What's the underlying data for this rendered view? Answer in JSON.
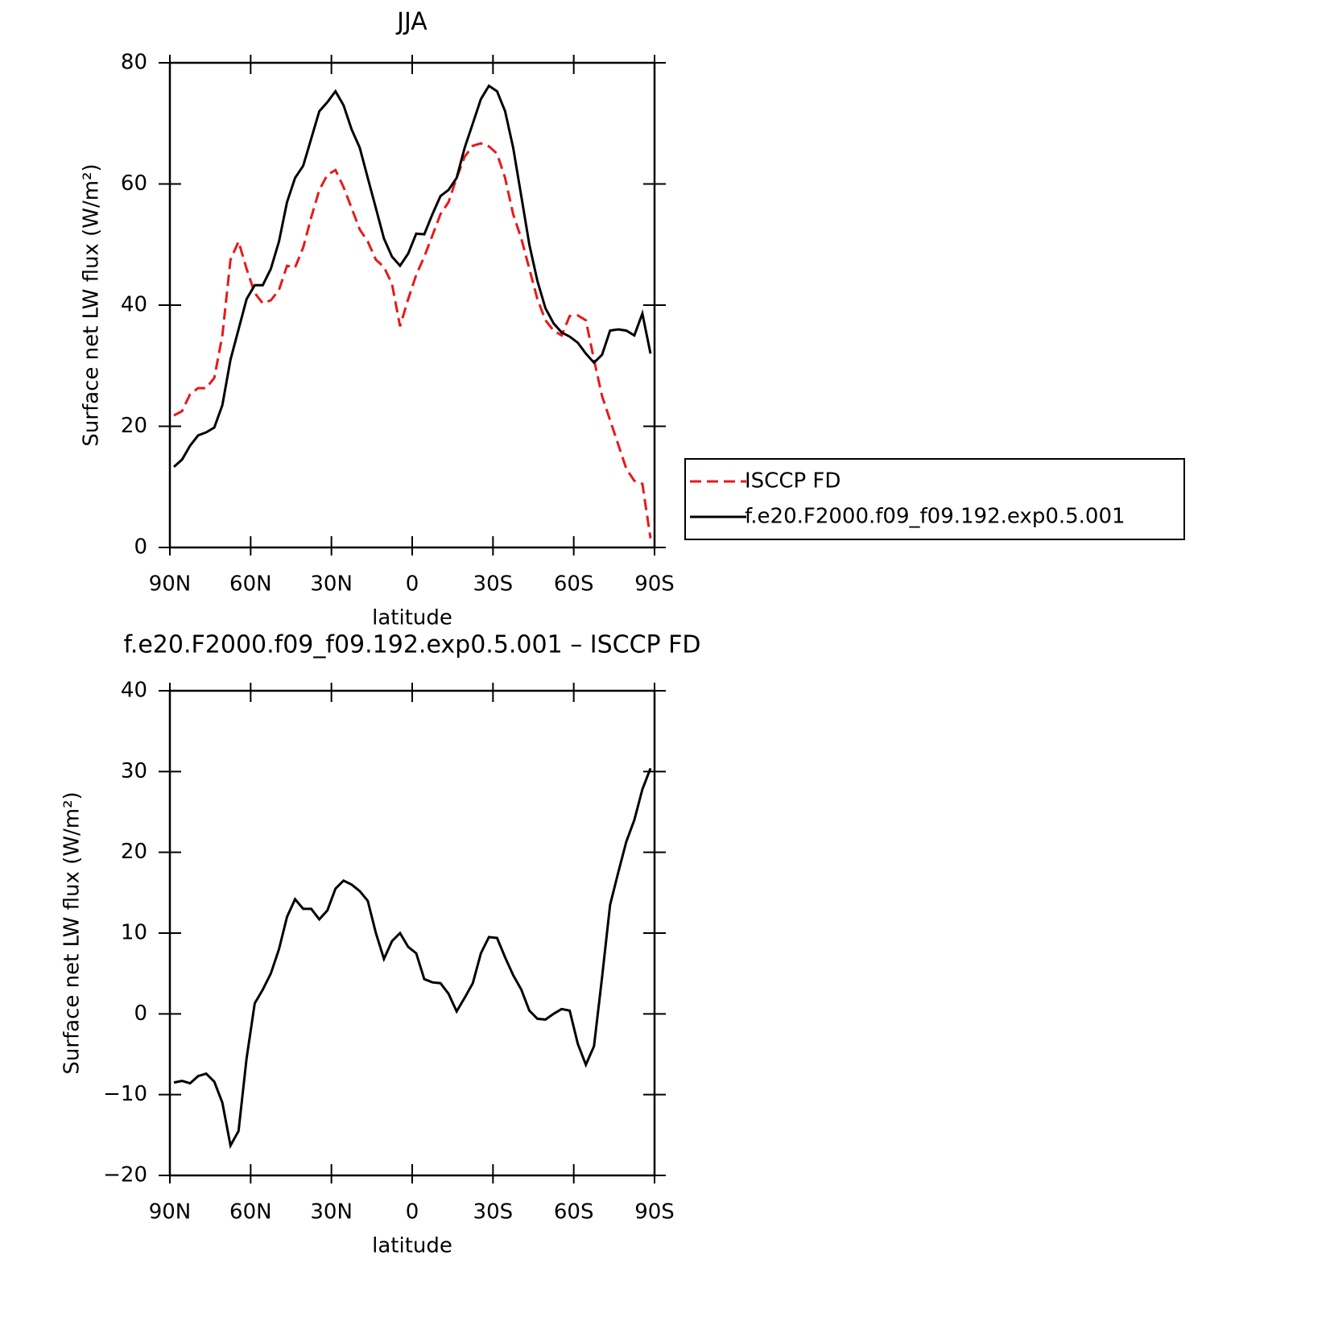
{
  "chart_data": [
    {
      "type": "line",
      "title": "JJA",
      "xlabel": "latitude",
      "ylabel": "Surface net LW flux (W/m²)",
      "x": [
        88.5,
        85.5,
        82.5,
        79.5,
        76.5,
        73.5,
        70.5,
        67.5,
        64.5,
        61.5,
        58.5,
        55.5,
        52.5,
        49.5,
        46.5,
        43.5,
        40.5,
        37.5,
        34.5,
        31.5,
        28.5,
        25.5,
        22.5,
        19.5,
        16.5,
        13.5,
        10.5,
        7.5,
        4.5,
        1.5,
        -1.5,
        -4.5,
        -7.5,
        -10.5,
        -13.5,
        -16.5,
        -19.5,
        -22.5,
        -25.5,
        -28.5,
        -31.5,
        -34.5,
        -37.5,
        -40.5,
        -43.5,
        -46.5,
        -49.5,
        -52.5,
        -55.5,
        -58.5,
        -61.5,
        -64.5,
        -67.5,
        -70.5,
        -73.5,
        -76.5,
        -79.5,
        -82.5,
        -85.5,
        -88.5
      ],
      "series": [
        {
          "name": "ISCCP FD",
          "color": "#e8191b",
          "linestyle": "dashed",
          "values": [
            21.8,
            22.5,
            25.3,
            26.3,
            26.3,
            28,
            35,
            47.5,
            50.5,
            46,
            42,
            40.3,
            40.8,
            42.5,
            46.5,
            46.2,
            49.5,
            54.5,
            59,
            61.5,
            62.3,
            59.5,
            56,
            52.5,
            50.5,
            47.5,
            46.3,
            43.5,
            36.5,
            41,
            45,
            48,
            51.5,
            55,
            57,
            61,
            64.5,
            66.3,
            66.7,
            66.2,
            65,
            61,
            55,
            51,
            46,
            41,
            37.5,
            35.8,
            35,
            38.2,
            38.3,
            37.5,
            31,
            25,
            21,
            17,
            13,
            11,
            10.5,
            1.5
          ]
        },
        {
          "name": "f.e20.F2000.f09_f09.192.exp0.5.001",
          "color": "#000000",
          "linestyle": "solid",
          "values": [
            13.3,
            14.5,
            16.8,
            18.5,
            19,
            19.8,
            23.5,
            31,
            36,
            41,
            43.3,
            43.3,
            46,
            50.5,
            57,
            61,
            63,
            67.5,
            72,
            73.5,
            75.3,
            73,
            69,
            66,
            61,
            56,
            51,
            48,
            46.5,
            48.5,
            51.8,
            51.7,
            55,
            58,
            59,
            61,
            66,
            70,
            74,
            76.2,
            75.3,
            72,
            66,
            58,
            50,
            44,
            39.5,
            37,
            35.5,
            34.8,
            33.8,
            32,
            30.5,
            31.8,
            35.8,
            36,
            35.8,
            35,
            38.6,
            32
          ]
        }
      ],
      "xlim": [
        90,
        -90
      ],
      "xticks": [
        {
          "value": 90,
          "label": "90N"
        },
        {
          "value": 60,
          "label": "60N"
        },
        {
          "value": 30,
          "label": "30N"
        },
        0,
        {
          "value": -30,
          "label": "30S"
        },
        {
          "value": -60,
          "label": "60S"
        },
        {
          "value": -90,
          "label": "90S"
        }
      ],
      "ylim": [
        0,
        80
      ],
      "yticks": [
        0,
        20,
        40,
        60,
        80
      ],
      "legend": "right"
    },
    {
      "type": "line",
      "title": "f.e20.F2000.f09_f09.192.exp0.5.001 – ISCCP FD",
      "xlabel": "latitude",
      "ylabel": "Surface net LW flux (W/m²)",
      "x": [
        88.5,
        85.5,
        82.5,
        79.5,
        76.5,
        73.5,
        70.5,
        67.5,
        64.5,
        61.5,
        58.5,
        55.5,
        52.5,
        49.5,
        46.5,
        43.5,
        40.5,
        37.5,
        34.5,
        31.5,
        28.5,
        25.5,
        22.5,
        19.5,
        16.5,
        13.5,
        10.5,
        7.5,
        4.5,
        1.5,
        -1.5,
        -4.5,
        -7.5,
        -10.5,
        -13.5,
        -16.5,
        -19.5,
        -22.5,
        -25.5,
        -28.5,
        -31.5,
        -34.5,
        -37.5,
        -40.5,
        -43.5,
        -46.5,
        -49.5,
        -52.5,
        -55.5,
        -58.5,
        -61.5,
        -64.5,
        -67.5,
        -70.5,
        -73.5,
        -76.5,
        -79.5,
        -82.5,
        -85.5,
        -88.5
      ],
      "series": [
        {
          "color": "#000000",
          "linestyle": "solid",
          "values": [
            -8.5,
            -8.3,
            -8.6,
            -7.7,
            -7.4,
            -8.4,
            -11,
            -16.3,
            -14.5,
            -5.5,
            1.3,
            3,
            5,
            8,
            12,
            14.2,
            13,
            13,
            11.7,
            12.8,
            15.5,
            16.5,
            16,
            15.2,
            14,
            10,
            6.8,
            9,
            10,
            8.3,
            7.5,
            4.3,
            3.9,
            3.8,
            2.5,
            0.3,
            2,
            3.8,
            7.5,
            9.5,
            9.4,
            7,
            4.8,
            3,
            0.4,
            -0.6,
            -0.7,
            0,
            0.6,
            0.4,
            -3.7,
            -6.3,
            -4,
            4.5,
            13.5,
            17.5,
            21.3,
            24,
            27.8,
            30.4
          ]
        }
      ],
      "xlim": [
        90,
        -90
      ],
      "xticks": [
        {
          "value": 90,
          "label": "90N"
        },
        {
          "value": 60,
          "label": "60N"
        },
        {
          "value": 30,
          "label": "30N"
        },
        0,
        {
          "value": -30,
          "label": "30S"
        },
        {
          "value": -60,
          "label": "60S"
        },
        {
          "value": -90,
          "label": "90S"
        }
      ],
      "ylim": [
        -20,
        40
      ],
      "yticks": [
        {
          "value": -20,
          "label": "−20"
        },
        {
          "value": -10,
          "label": "−10"
        },
        0,
        10,
        20,
        30,
        40
      ]
    }
  ]
}
